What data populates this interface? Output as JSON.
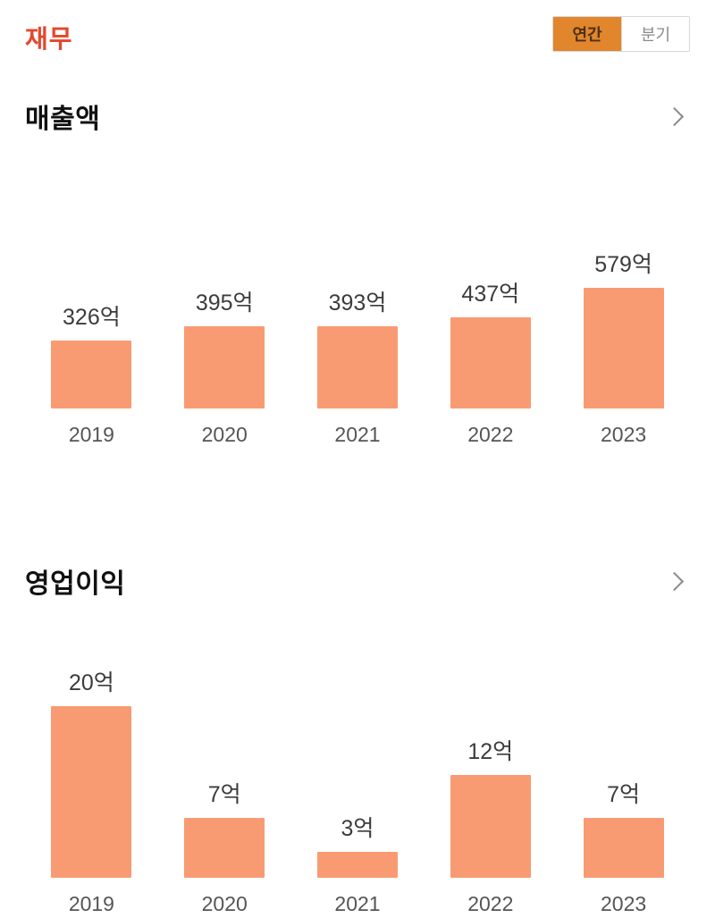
{
  "header": {
    "title": "재무",
    "toggle": {
      "annual": "연간",
      "quarterly": "분기"
    }
  },
  "colors": {
    "bar": "#f99b72",
    "title_accent": "#e5462c",
    "active_toggle_bg": "#e2862e"
  },
  "sections": [
    {
      "title": "매출액"
    },
    {
      "title": "영업이익"
    }
  ],
  "chart_data": [
    {
      "type": "bar",
      "title": "매출액",
      "categories": [
        "2019",
        "2020",
        "2021",
        "2022",
        "2023"
      ],
      "values": [
        326,
        395,
        393,
        437,
        579
      ],
      "unit": "억",
      "value_labels": [
        "326억",
        "395억",
        "393억",
        "437억",
        "579억"
      ],
      "xlabel": "",
      "ylabel": "",
      "ylim": [
        0,
        579
      ],
      "grid": false,
      "legend": false,
      "bar_color": "#f99b72"
    },
    {
      "type": "bar",
      "title": "영업이익",
      "categories": [
        "2019",
        "2020",
        "2021",
        "2022",
        "2023"
      ],
      "values": [
        20,
        7,
        3,
        12,
        7
      ],
      "unit": "억",
      "value_labels": [
        "20억",
        "7억",
        "3억",
        "12억",
        "7억"
      ],
      "xlabel": "",
      "ylabel": "",
      "ylim": [
        0,
        20
      ],
      "grid": false,
      "legend": false,
      "bar_color": "#f99b72"
    }
  ]
}
